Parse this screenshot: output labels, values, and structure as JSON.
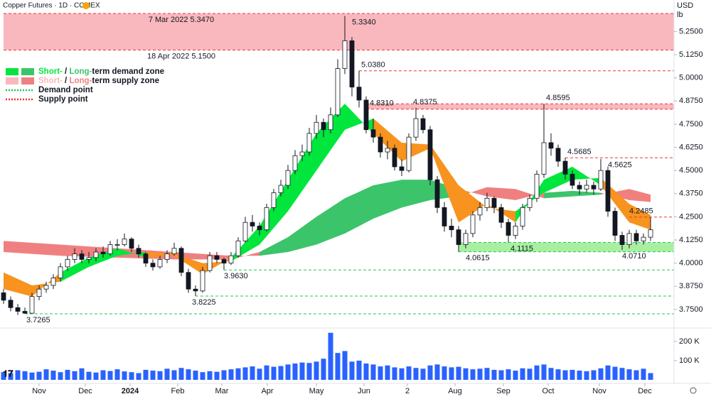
{
  "header": {
    "title": "Copper Futures · 1D · COMEX",
    "currency": "USD",
    "unit": "lb"
  },
  "chart_data": {
    "type": "candlestick",
    "ylim": [
      3.65,
      5.42
    ],
    "yticks": [
      {
        "value": 3.75,
        "label": "3.7500"
      },
      {
        "value": 3.875,
        "label": "3.8750"
      },
      {
        "value": 4.0,
        "label": "4.0000"
      },
      {
        "value": 4.125,
        "label": "4.1250"
      },
      {
        "value": 4.25,
        "label": "4.2500"
      },
      {
        "value": 4.375,
        "label": "4.3750"
      },
      {
        "value": 4.5,
        "label": "4.5000"
      },
      {
        "value": 4.625,
        "label": "4.6250"
      },
      {
        "value": 4.75,
        "label": "4.7500"
      },
      {
        "value": 4.875,
        "label": "4.8750"
      },
      {
        "value": 5.0,
        "label": "5.0000"
      },
      {
        "value": 5.125,
        "label": "5.1250"
      },
      {
        "value": 5.25,
        "label": "5.2500"
      }
    ],
    "xlim": [
      -0.5,
      94.3
    ],
    "xticks": [
      {
        "value": 5,
        "label": "Nov"
      },
      {
        "value": 11.5,
        "label": "Dec"
      },
      {
        "value": 17.8,
        "label": "2024"
      },
      {
        "value": 24.5,
        "label": "Feb"
      },
      {
        "value": 30.7,
        "label": "Mar"
      },
      {
        "value": 37.1,
        "label": "Apr"
      },
      {
        "value": 44,
        "label": "May"
      },
      {
        "value": 50.7,
        "label": "Jun"
      },
      {
        "value": 56.8,
        "label": "2"
      },
      {
        "value": 63.5,
        "label": "Aug"
      },
      {
        "value": 70.3,
        "label": "Sep"
      },
      {
        "value": 76.6,
        "label": "Oct"
      },
      {
        "value": 83.8,
        "label": "Nov"
      },
      {
        "value": 90.2,
        "label": "Dec"
      }
    ],
    "up_color": "#ffffff",
    "down_color": "#131722",
    "candles": [
      [
        3.84,
        3.86,
        3.78,
        3.8
      ],
      [
        3.8,
        3.82,
        3.74,
        3.76
      ],
      [
        3.76,
        3.78,
        3.72,
        3.74
      ],
      [
        3.74,
        3.76,
        3.7265,
        3.73
      ],
      [
        3.73,
        3.84,
        3.73,
        3.82
      ],
      [
        3.82,
        3.88,
        3.8,
        3.86
      ],
      [
        3.86,
        3.9,
        3.84,
        3.88
      ],
      [
        3.88,
        3.94,
        3.86,
        3.92
      ],
      [
        3.92,
        4.0,
        3.9,
        3.98
      ],
      [
        3.98,
        4.04,
        3.96,
        4.02
      ],
      [
        4.02,
        4.08,
        4.0,
        4.05
      ],
      [
        4.05,
        4.07,
        4.0,
        4.02
      ],
      [
        4.02,
        4.06,
        4.0,
        4.03
      ],
      [
        4.03,
        4.08,
        4.01,
        4.06
      ],
      [
        4.06,
        4.09,
        4.03,
        4.05
      ],
      [
        4.05,
        4.12,
        4.04,
        4.1
      ],
      [
        4.1,
        4.13,
        4.07,
        4.1
      ],
      [
        4.1,
        4.16,
        4.09,
        4.13
      ],
      [
        4.13,
        4.14,
        4.06,
        4.08
      ],
      [
        4.08,
        4.1,
        4.03,
        4.05
      ],
      [
        4.05,
        4.06,
        3.98,
        4.0
      ],
      [
        4.0,
        4.02,
        3.96,
        3.98
      ],
      [
        3.98,
        4.04,
        3.97,
        4.02
      ],
      [
        4.02,
        4.07,
        4.0,
        4.05
      ],
      [
        4.05,
        4.11,
        4.04,
        4.08
      ],
      [
        4.08,
        4.09,
        3.93,
        3.95
      ],
      [
        3.95,
        3.97,
        3.84,
        3.86
      ],
      [
        3.86,
        3.88,
        3.8225,
        3.85
      ],
      [
        3.85,
        3.98,
        3.84,
        3.96
      ],
      [
        3.96,
        4.06,
        3.95,
        4.04
      ],
      [
        4.04,
        4.06,
        4.0,
        4.02
      ],
      [
        4.02,
        4.03,
        3.963,
        4.0
      ],
      [
        4.0,
        4.06,
        3.99,
        4.04
      ],
      [
        4.04,
        4.14,
        4.03,
        4.12
      ],
      [
        4.12,
        4.25,
        4.11,
        4.22
      ],
      [
        4.22,
        4.26,
        4.17,
        4.2
      ],
      [
        4.2,
        4.22,
        4.15,
        4.18
      ],
      [
        4.18,
        4.32,
        4.17,
        4.3
      ],
      [
        4.3,
        4.4,
        4.28,
        4.38
      ],
      [
        4.38,
        4.45,
        4.36,
        4.42
      ],
      [
        4.42,
        4.53,
        4.4,
        4.5
      ],
      [
        4.5,
        4.61,
        4.48,
        4.58
      ],
      [
        4.58,
        4.64,
        4.55,
        4.6
      ],
      [
        4.6,
        4.73,
        4.58,
        4.7
      ],
      [
        4.7,
        4.8,
        4.67,
        4.76
      ],
      [
        4.76,
        4.78,
        4.68,
        4.72
      ],
      [
        4.72,
        4.84,
        4.7,
        4.8
      ],
      [
        4.8,
        5.1,
        4.79,
        5.05
      ],
      [
        5.05,
        5.334,
        5.02,
        5.2
      ],
      [
        5.2,
        5.22,
        4.9,
        4.95
      ],
      [
        4.95,
        5.038,
        4.84,
        4.88
      ],
      [
        4.88,
        4.9,
        4.7,
        4.72
      ],
      [
        4.72,
        4.78,
        4.65,
        4.68
      ],
      [
        4.68,
        4.7,
        4.57,
        4.6
      ],
      [
        4.6,
        4.66,
        4.56,
        4.62
      ],
      [
        4.62,
        4.64,
        4.5,
        4.52
      ],
      [
        4.52,
        4.56,
        4.47,
        4.5
      ],
      [
        4.5,
        4.7,
        4.49,
        4.68
      ],
      [
        4.68,
        4.8375,
        4.66,
        4.78
      ],
      [
        4.78,
        4.8,
        4.7,
        4.72
      ],
      [
        4.72,
        4.74,
        4.42,
        4.45
      ],
      [
        4.45,
        4.47,
        4.27,
        4.3
      ],
      [
        4.3,
        4.33,
        4.17,
        4.2
      ],
      [
        4.2,
        4.24,
        4.14,
        4.18
      ],
      [
        4.18,
        4.2,
        4.0615,
        4.1
      ],
      [
        4.1,
        4.18,
        4.08,
        4.16
      ],
      [
        4.16,
        4.28,
        4.14,
        4.26
      ],
      [
        4.26,
        4.33,
        4.23,
        4.3
      ],
      [
        4.3,
        4.38,
        4.28,
        4.35
      ],
      [
        4.35,
        4.36,
        4.27,
        4.3
      ],
      [
        4.3,
        4.32,
        4.19,
        4.22
      ],
      [
        4.22,
        4.24,
        4.1115,
        4.15
      ],
      [
        4.15,
        4.22,
        4.13,
        4.2
      ],
      [
        4.2,
        4.32,
        4.18,
        4.3
      ],
      [
        4.3,
        4.37,
        4.28,
        4.35
      ],
      [
        4.35,
        4.5,
        4.33,
        4.48
      ],
      [
        4.48,
        4.8595,
        4.46,
        4.65
      ],
      [
        4.65,
        4.7,
        4.58,
        4.62
      ],
      [
        4.62,
        4.64,
        4.52,
        4.55
      ],
      [
        4.55,
        4.5685,
        4.45,
        4.48
      ],
      [
        4.48,
        4.5,
        4.4,
        4.42
      ],
      [
        4.42,
        4.44,
        4.37,
        4.4
      ],
      [
        4.4,
        4.45,
        4.38,
        4.42
      ],
      [
        4.42,
        4.44,
        4.37,
        4.4
      ],
      [
        4.4,
        4.5625,
        4.39,
        4.5
      ],
      [
        4.5,
        4.52,
        4.25,
        4.28
      ],
      [
        4.28,
        4.3,
        4.12,
        4.15
      ],
      [
        4.15,
        4.17,
        4.071,
        4.1
      ],
      [
        4.1,
        4.18,
        4.08,
        4.16
      ],
      [
        4.16,
        4.18,
        4.1,
        4.12
      ],
      [
        4.12,
        4.16,
        4.1,
        4.14
      ],
      [
        4.14,
        4.2485,
        4.12,
        4.18
      ]
    ],
    "volume": {
      "color": "#2962ff",
      "ylim": [
        0,
        270000
      ],
      "yticks": [
        {
          "value": 100000,
          "label": "100 K"
        },
        {
          "value": 200000,
          "label": "200 K"
        }
      ],
      "values": [
        40000,
        35000,
        50000,
        45000,
        38000,
        42000,
        55000,
        48000,
        40000,
        52000,
        45000,
        60000,
        42000,
        38000,
        50000,
        46000,
        55000,
        44000,
        40000,
        35000,
        52000,
        48000,
        45000,
        58000,
        50000,
        62000,
        55000,
        48000,
        40000,
        45000,
        42000,
        50000,
        55000,
        60000,
        65000,
        70000,
        58000,
        75000,
        68000,
        72000,
        80000,
        85000,
        90000,
        88000,
        95000,
        110000,
        245000,
        140000,
        150000,
        95000,
        100000,
        85000,
        80000,
        70000,
        75000,
        65000,
        60000,
        70000,
        62000,
        58000,
        75000,
        80000,
        70000,
        65000,
        68000,
        60000,
        55000,
        58000,
        62000,
        52000,
        50000,
        55000,
        48000,
        60000,
        58000,
        75000,
        80000,
        62000,
        55000,
        50000,
        52000,
        48000,
        45000,
        50000,
        60000,
        75000,
        68000,
        62000,
        55000,
        50000,
        58000,
        35000
      ]
    },
    "bands": [
      {
        "x": [
          0,
          8,
          16,
          24,
          32,
          36,
          40,
          44,
          48,
          52,
          56,
          60,
          64,
          68,
          72,
          76,
          80,
          84,
          88,
          91
        ],
        "fast": [
          4.06,
          4.04,
          4.03,
          4.02,
          4.02,
          4.06,
          4.14,
          4.25,
          4.35,
          4.42,
          4.45,
          4.45,
          4.4,
          4.36,
          4.34,
          4.38,
          4.39,
          4.38,
          4.34,
          4.33
        ],
        "slow": [
          4.12,
          4.1,
          4.08,
          4.06,
          4.04,
          4.04,
          4.06,
          4.1,
          4.16,
          4.24,
          4.3,
          4.34,
          4.36,
          4.41,
          4.4,
          4.35,
          4.36,
          4.37,
          4.4,
          4.37
        ],
        "up_color": "#3cc46a",
        "down_color": "#f08080"
      },
      {
        "x": [
          0,
          4,
          8,
          12,
          16,
          20,
          24,
          28,
          32,
          36,
          40,
          44,
          48,
          52,
          56,
          60,
          64,
          68,
          72,
          76,
          80,
          84,
          88,
          91
        ],
        "fast": [
          3.86,
          3.82,
          3.95,
          4.03,
          4.08,
          4.03,
          4.04,
          3.94,
          4.03,
          4.2,
          4.45,
          4.7,
          4.86,
          4.7,
          4.55,
          4.62,
          4.22,
          4.32,
          4.22,
          4.45,
          4.52,
          4.42,
          4.22,
          4.18
        ],
        "slow": [
          3.95,
          3.88,
          3.9,
          3.98,
          4.04,
          4.06,
          4.05,
          4.0,
          4.01,
          4.1,
          4.28,
          4.5,
          4.72,
          4.78,
          4.65,
          4.64,
          4.42,
          4.3,
          4.28,
          4.38,
          4.45,
          4.46,
          4.32,
          4.26
        ],
        "up_color": "#00e63c",
        "down_color": "#f7931e"
      }
    ],
    "zones": [
      {
        "low": 5.15,
        "high": 5.347,
        "from": 0,
        "color": "#f9b8bd"
      },
      {
        "low": 4.831,
        "high": 4.8595,
        "from": 51,
        "color": "#f9b8bd"
      },
      {
        "low": 4.0615,
        "high": 4.1115,
        "from": 64,
        "color": "#a8f0a0"
      }
    ],
    "supply_color": "#e53935",
    "demand_color": "#22c55e",
    "levels": [
      {
        "value": 5.347,
        "from": 0,
        "kind": "supply"
      },
      {
        "value": 5.15,
        "from": 0,
        "kind": "supply"
      },
      {
        "value": 5.038,
        "from": 50,
        "kind": "supply"
      },
      {
        "value": 4.8595,
        "from": 51,
        "kind": "supply"
      },
      {
        "value": 4.831,
        "from": 51,
        "kind": "supply"
      },
      {
        "value": 4.5685,
        "from": 79,
        "kind": "supply"
      },
      {
        "value": 4.2485,
        "from": 88,
        "kind": "supply"
      },
      {
        "value": 4.1115,
        "from": 64,
        "kind": "demand"
      },
      {
        "value": 4.0615,
        "from": 64,
        "kind": "demand"
      },
      {
        "value": 3.963,
        "from": 31,
        "kind": "demand"
      },
      {
        "value": 3.8225,
        "from": 27,
        "kind": "demand"
      },
      {
        "value": 3.7265,
        "from": 3,
        "kind": "demand"
      }
    ],
    "annotations": [
      {
        "text": "7 Mar 2022 5.3470",
        "x": 25,
        "value": 5.347,
        "pos": "below",
        "anchor": "middle"
      },
      {
        "text": "18 Apr 2022 5.1500",
        "x": 25,
        "value": 5.15,
        "pos": "below",
        "anchor": "middle"
      },
      {
        "text": "5.3340",
        "x": 49,
        "value": 5.334,
        "pos": "below",
        "anchor": "start"
      },
      {
        "text": "5.0380",
        "x": 50.3,
        "value": 5.038,
        "pos": "above",
        "anchor": "start"
      },
      {
        "text": "4.8310",
        "x": 51.5,
        "value": 4.831,
        "pos": "above",
        "anchor": "start"
      },
      {
        "text": "4.8375",
        "x": 57.6,
        "value": 4.8375,
        "pos": "above",
        "anchor": "start"
      },
      {
        "text": "4.8595",
        "x": 76.3,
        "value": 4.8595,
        "pos": "above",
        "anchor": "start"
      },
      {
        "text": "4.5685",
        "x": 79.3,
        "value": 4.5685,
        "pos": "above",
        "anchor": "start"
      },
      {
        "text": "4.5625",
        "x": 85,
        "value": 4.5625,
        "pos": "below",
        "anchor": "start"
      },
      {
        "text": "4.2485",
        "x": 88,
        "value": 4.2485,
        "pos": "above",
        "anchor": "start"
      },
      {
        "text": "4.1115",
        "x": 71.3,
        "value": 4.1115,
        "pos": "below",
        "anchor": "start"
      },
      {
        "text": "4.0615",
        "x": 65,
        "value": 4.0615,
        "pos": "below",
        "anchor": "start"
      },
      {
        "text": "4.0710",
        "x": 87,
        "value": 4.071,
        "pos": "below",
        "anchor": "start"
      },
      {
        "text": "3.9630",
        "x": 31,
        "value": 3.963,
        "pos": "below",
        "anchor": "start"
      },
      {
        "text": "3.8225",
        "x": 26.5,
        "value": 3.8225,
        "pos": "below",
        "anchor": "start"
      },
      {
        "text": "3.7265",
        "x": 3.2,
        "value": 3.7265,
        "pos": "below",
        "anchor": "start"
      }
    ],
    "legend": [
      {
        "swatches": [
          "#00e63c",
          "#3cc46a"
        ],
        "parts": [
          {
            "text": "Short-",
            "color": "#00e63c"
          },
          {
            "text": " / "
          },
          {
            "text": "Long-",
            "color": "#3cc46a"
          },
          {
            "text": "term demand zone"
          }
        ]
      },
      {
        "swatches": [
          "#f9b8bd",
          "#f08080"
        ],
        "parts": [
          {
            "text": "Short-",
            "color": "#f9b8bd"
          },
          {
            "text": " / "
          },
          {
            "text": "Long-",
            "color": "#f08080"
          },
          {
            "text": "term supply zone"
          }
        ]
      },
      {
        "line": "#22c55e",
        "parts": [
          {
            "text": "Demand point"
          }
        ]
      },
      {
        "line": "#e53935",
        "parts": [
          {
            "text": "Supply point"
          }
        ]
      }
    ]
  }
}
